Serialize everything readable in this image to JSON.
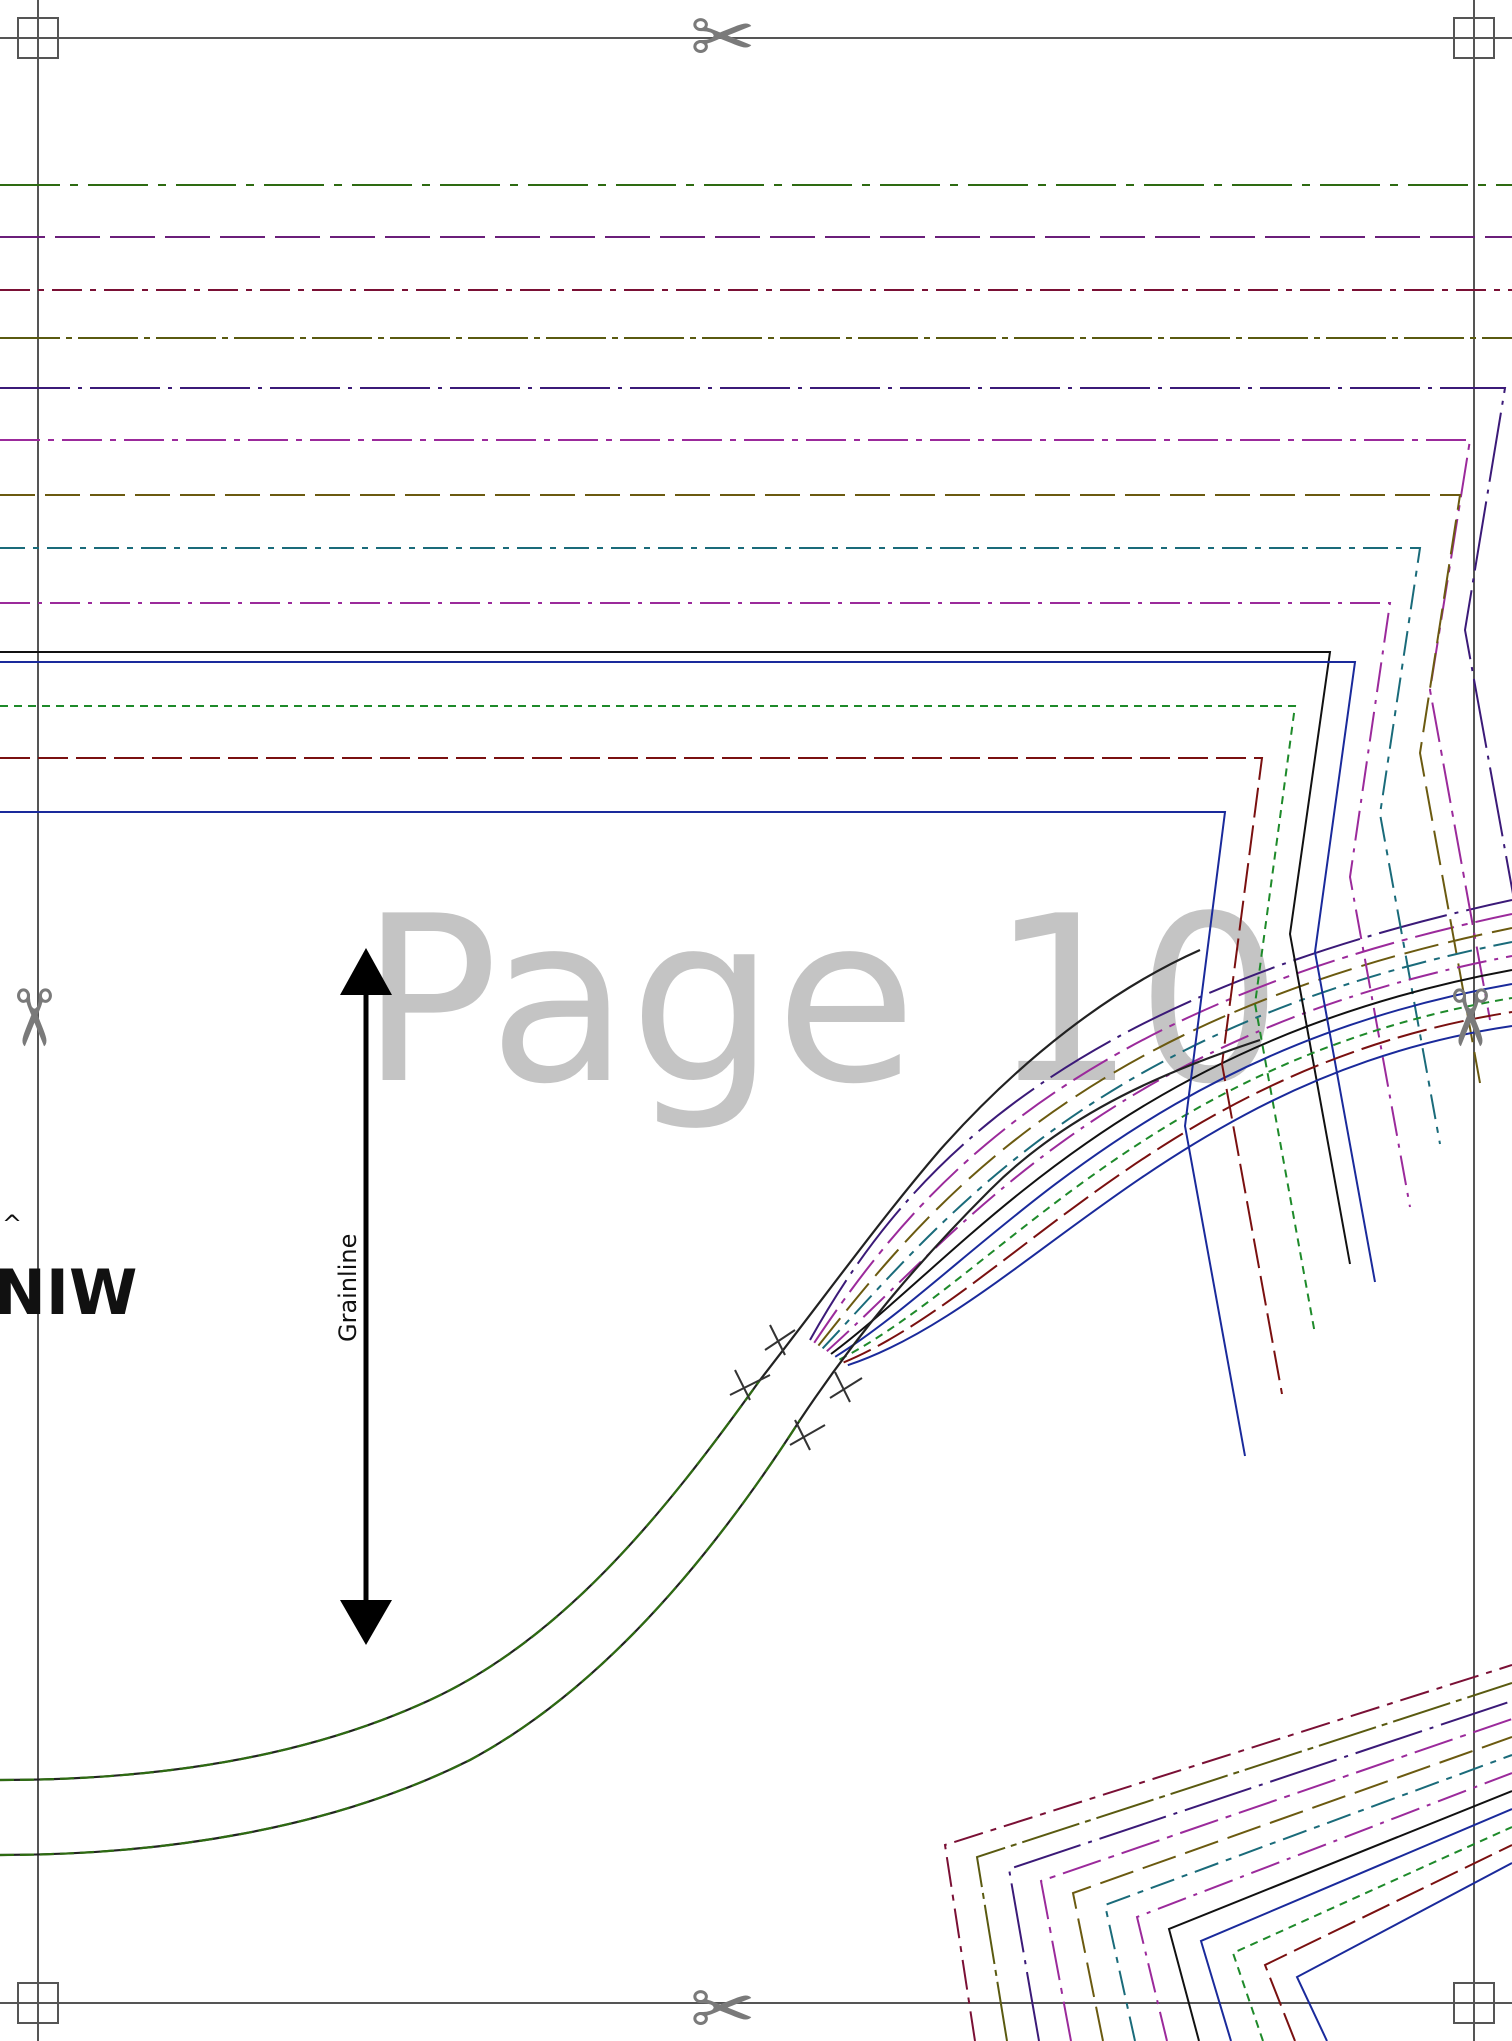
{
  "page": {
    "watermark": "Page 10",
    "grainline_label": "Grainline",
    "piece_label_fragment": "NIW",
    "caret_glyph": "^"
  },
  "icons": {
    "scissors_glyph": "✂",
    "registration_mark": "register-box-icon"
  },
  "size_lines": [
    {
      "color": "#2e6b12",
      "dash": "60 10 8 10"
    },
    {
      "color": "#6b1f7a",
      "dash": "45 10"
    },
    {
      "color": "#7a1035",
      "dash": "30 8 6 8"
    },
    {
      "color": "#5a5a10",
      "dash": "60 6 6 6"
    },
    {
      "color": "#3b1a78",
      "dash": "70 8 4 8"
    },
    {
      "color": "#9b2a9b",
      "dash": "40 8 6 8"
    },
    {
      "color": "#6b5a10",
      "dash": "35 10"
    },
    {
      "color": "#1a6b7a",
      "dash": "25 8 6 8"
    },
    {
      "color": "#9b2a9b",
      "dash": "30 8 4 8"
    },
    {
      "color": "#111111",
      "dash": ""
    },
    {
      "color": "#1a2a9b",
      "dash": ""
    },
    {
      "color": "#1e8a2a",
      "dash": "8 6"
    },
    {
      "color": "#7a1010",
      "dash": "30 8"
    },
    {
      "color": "#1a2a9b",
      "dash": ""
    }
  ]
}
